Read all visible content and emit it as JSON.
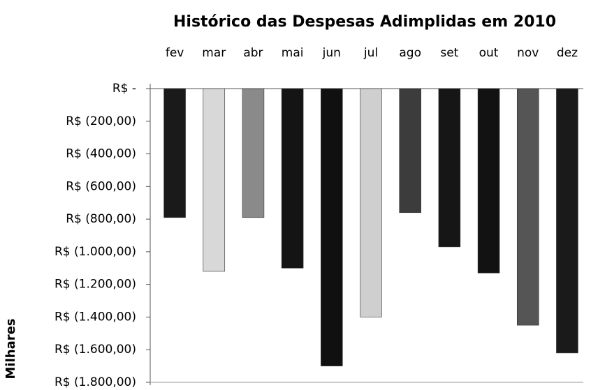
{
  "chart_data": {
    "type": "bar",
    "title": "Histórico das Despesas Adimplidas em 2010",
    "y_axis_label": "Milhares",
    "categories": [
      "fev",
      "mar",
      "abr",
      "mai",
      "jun",
      "jul",
      "ago",
      "set",
      "out",
      "nov",
      "dez"
    ],
    "values": [
      -790,
      -1120,
      -790,
      -1100,
      -1700,
      -1400,
      -760,
      -970,
      -1130,
      -1450,
      -1620
    ],
    "colors": [
      "#1a1a1a",
      "#d8d8d8",
      "#8a8a8a",
      "#141414",
      "#101010",
      "#cfcfcf",
      "#3c3c3c",
      "#161616",
      "#121212",
      "#555555",
      "#1a1a1a"
    ],
    "ylim": [
      -1800,
      0
    ],
    "yticks": [
      {
        "value": 0,
        "label": "R$ -"
      },
      {
        "value": -200,
        "label": "R$ (200,00)"
      },
      {
        "value": -400,
        "label": "R$ (400,00)"
      },
      {
        "value": -600,
        "label": "R$ (600,00)"
      },
      {
        "value": -800,
        "label": "R$ (800,00)"
      },
      {
        "value": -1000,
        "label": "R$ (1.000,00)"
      },
      {
        "value": -1200,
        "label": "R$ (1.200,00)"
      },
      {
        "value": -1400,
        "label": "R$ (1.400,00)"
      },
      {
        "value": -1600,
        "label": "R$ (1.600,00)"
      },
      {
        "value": -1800,
        "label": "R$ (1.800,00)"
      }
    ],
    "grid": false
  }
}
